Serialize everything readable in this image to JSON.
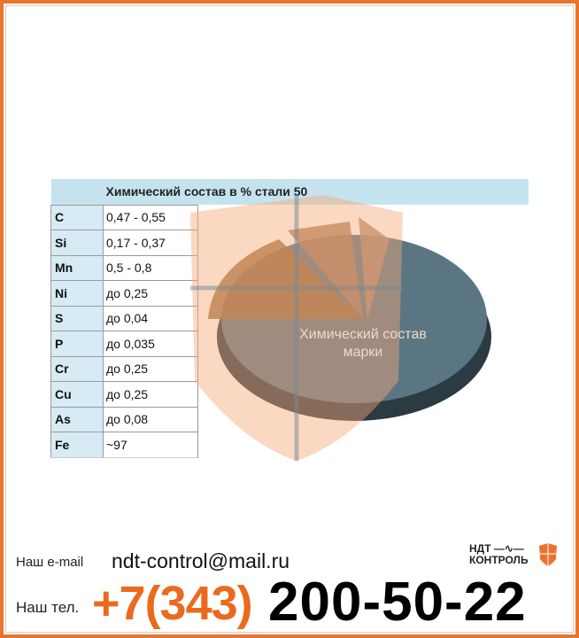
{
  "table": {
    "title": "Химический состав в % стали 50",
    "rows": [
      {
        "element": "C",
        "value": "0,47 - 0,55"
      },
      {
        "element": "Si",
        "value": "0,17 - 0,37"
      },
      {
        "element": "Mn",
        "value": "0,5 - 0,8"
      },
      {
        "element": "Ni",
        "value": "до 0,25"
      },
      {
        "element": "S",
        "value": "до 0,04"
      },
      {
        "element": "P",
        "value": "до 0,035"
      },
      {
        "element": "Cr",
        "value": "до 0,25"
      },
      {
        "element": "Cu",
        "value": "до 0,25"
      },
      {
        "element": "As",
        "value": "до 0,08"
      },
      {
        "element": "Fe",
        "value": "~97"
      }
    ]
  },
  "pie": {
    "label_line1": "Химический состав",
    "label_line2": "марки",
    "colors": {
      "main": "#4d6470",
      "slices": "#8a5a3c"
    }
  },
  "contact": {
    "email_label": "Наш e-mail",
    "email": "ndt-control@mail.ru",
    "phone_label": "Наш тел.",
    "phone_code": "+7(343)",
    "phone_number": "200-50-22"
  },
  "logo": {
    "line1": "НДТ",
    "line2": "КОНТРОЛЬ"
  },
  "colors": {
    "border": "#e8752f",
    "header": "#c5e3ef",
    "accent": "#ea6a1f"
  }
}
